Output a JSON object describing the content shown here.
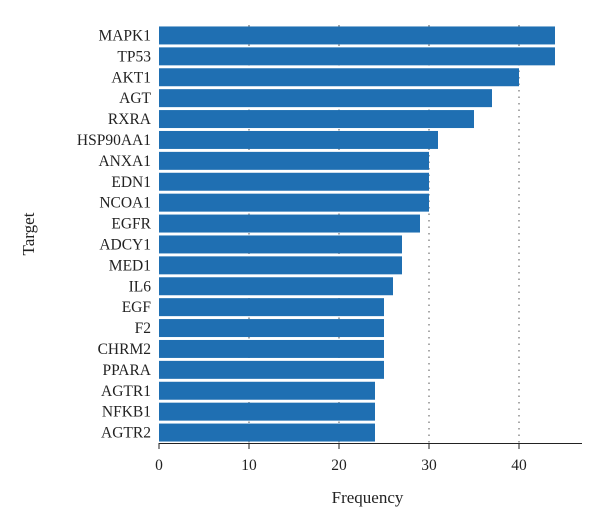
{
  "chart_data": {
    "type": "bar",
    "orientation": "horizontal",
    "categories": [
      "MAPK1",
      "TP53",
      "AKT1",
      "AGT",
      "RXRA",
      "HSP90AA1",
      "ANXA1",
      "EDN1",
      "NCOA1",
      "EGFR",
      "ADCY1",
      "MED1",
      "IL6",
      "EGF",
      "F2",
      "CHRM2",
      "PPARA",
      "AGTR1",
      "NFKB1",
      "AGTR2"
    ],
    "values": [
      44,
      44,
      40,
      37,
      35,
      31,
      30,
      30,
      30,
      29,
      27,
      27,
      26,
      25,
      25,
      25,
      25,
      24,
      24,
      24
    ],
    "xlabel": "Frequency",
    "ylabel": "Target",
    "xlim": [
      0,
      47
    ],
    "xticks": [
      0,
      10,
      20,
      30,
      40
    ],
    "grid": "vertical dotted",
    "bar_color": "#1f6fb2"
  }
}
